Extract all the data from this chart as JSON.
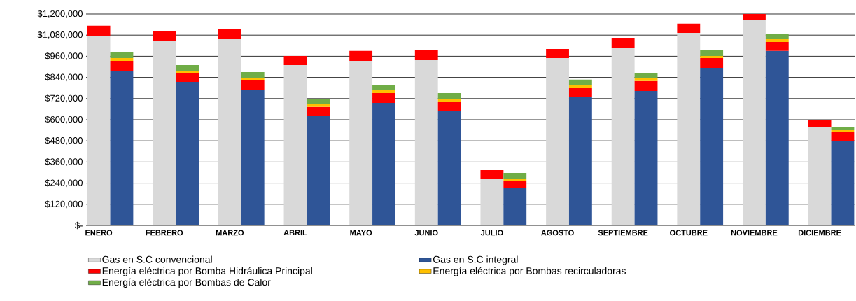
{
  "chart_data": {
    "type": "bar",
    "stacked": true,
    "categories": [
      "ENERO",
      null,
      "FEBRERO",
      null,
      "MARZO",
      null,
      "ABRIL",
      null,
      "MAYO",
      null,
      "JUNIO",
      null,
      "JULIO",
      null,
      "AGOSTO",
      null,
      "SEPTIEMBRE",
      null,
      "OCTUBRE",
      null,
      "NOVIEMBRE",
      null,
      "DICIEMBRE",
      null
    ],
    "series": [
      {
        "name": "Gas en S.C convencional",
        "color": "#d9d9d9",
        "values": [
          1073000,
          null,
          1049000,
          null,
          1057000,
          null,
          910000,
          null,
          934000,
          null,
          938000,
          null,
          266000,
          null,
          950000,
          null,
          1009000,
          null,
          1093000,
          null,
          1164000,
          null,
          556000,
          null
        ]
      },
      {
        "name": "Gas en S.C integral",
        "color": "#2f5597",
        "values": [
          null,
          878000,
          null,
          815000,
          null,
          767000,
          null,
          620000,
          null,
          695000,
          null,
          648000,
          null,
          211000,
          null,
          727000,
          null,
          763000,
          null,
          894000,
          null,
          990000,
          null,
          477000
        ]
      },
      {
        "name": "Energía eléctrica por Bomba Hidráulica Principal",
        "color": "#ff0000",
        "values": [
          60000,
          56000,
          52000,
          51000,
          56000,
          56000,
          52000,
          52000,
          56000,
          56000,
          59000,
          55000,
          48000,
          43000,
          51000,
          52000,
          52000,
          56000,
          52000,
          56000,
          36000,
          51000,
          44000,
          52000
        ]
      },
      {
        "name": "Energía eléctrica por Bombas recirculadoras",
        "color": "#ffc000",
        "values": [
          null,
          16000,
          null,
          12000,
          null,
          15000,
          null,
          15000,
          null,
          16000,
          null,
          16000,
          null,
          12000,
          null,
          16000,
          null,
          16000,
          null,
          12000,
          null,
          16000,
          null,
          11000
        ]
      },
      {
        "name": "Energía eléctrica por Bombas de Calor",
        "color": "#70ad47",
        "values": [
          null,
          32000,
          null,
          32000,
          null,
          32000,
          null,
          32000,
          null,
          32000,
          null,
          32000,
          null,
          32000,
          null,
          32000,
          null,
          27000,
          null,
          32000,
          null,
          32000,
          null,
          20000
        ]
      }
    ],
    "ylim": [
      0,
      1200000
    ],
    "yticks": [
      {
        "value": 0,
        "label": "$-"
      },
      {
        "value": 120000,
        "label": "$120,000"
      },
      {
        "value": 240000,
        "label": "$240,000"
      },
      {
        "value": 360000,
        "label": "$360,000"
      },
      {
        "value": 480000,
        "label": "$480,000"
      },
      {
        "value": 600000,
        "label": "$600,000"
      },
      {
        "value": 720000,
        "label": "$720,000"
      },
      {
        "value": 840000,
        "label": "$840,000"
      },
      {
        "value": 960000,
        "label": "$960,000"
      },
      {
        "value": 1080000,
        "label": "$1,080,000"
      },
      {
        "value": 1200000,
        "label": "$1,200,000"
      }
    ],
    "grid": "y",
    "legend": "bottom"
  }
}
